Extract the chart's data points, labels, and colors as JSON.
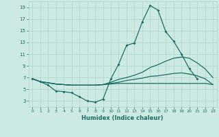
{
  "xlabel": "Humidex (Indice chaleur)",
  "ylabel": "",
  "background_color": "#cce9e4",
  "grid_color": "#aad4cc",
  "line_color": "#1a6e62",
  "xlim": [
    -0.5,
    23.5
  ],
  "ylim": [
    2.0,
    20.0
  ],
  "yticks": [
    3,
    5,
    7,
    9,
    11,
    13,
    15,
    17,
    19
  ],
  "xticks": [
    0,
    1,
    2,
    3,
    4,
    5,
    6,
    7,
    8,
    9,
    10,
    11,
    12,
    13,
    14,
    15,
    16,
    17,
    18,
    19,
    20,
    21,
    22,
    23
  ],
  "line1_x": [
    0,
    1,
    2,
    3,
    4,
    5,
    6,
    7,
    8,
    9,
    10,
    11,
    12,
    13,
    14,
    15,
    16,
    17,
    18,
    19,
    20,
    21
  ],
  "line1_y": [
    6.8,
    6.3,
    5.7,
    4.7,
    4.6,
    4.4,
    3.7,
    3.0,
    2.8,
    3.3,
    6.8,
    9.3,
    12.5,
    12.9,
    16.5,
    19.3,
    18.5,
    14.8,
    13.2,
    11.0,
    8.5,
    6.8
  ],
  "line2_x": [
    0,
    1,
    2,
    3,
    4,
    5,
    6,
    7,
    8,
    9,
    10,
    11,
    12,
    13,
    14,
    15,
    16,
    17,
    18,
    19,
    20,
    21,
    22,
    23
  ],
  "line2_y": [
    6.8,
    6.3,
    6.1,
    5.9,
    5.8,
    5.7,
    5.7,
    5.7,
    5.7,
    5.8,
    6.2,
    6.7,
    7.0,
    7.4,
    7.9,
    8.7,
    9.2,
    9.8,
    10.3,
    10.5,
    10.3,
    9.5,
    8.5,
    7.0
  ],
  "line3_x": [
    0,
    1,
    2,
    3,
    4,
    5,
    6,
    7,
    8,
    9,
    10,
    11,
    12,
    13,
    14,
    15,
    16,
    17,
    18,
    19,
    20,
    21,
    22,
    23
  ],
  "line3_y": [
    6.8,
    6.3,
    6.1,
    5.9,
    5.8,
    5.7,
    5.7,
    5.7,
    5.7,
    5.8,
    6.0,
    6.2,
    6.5,
    6.7,
    6.9,
    7.2,
    7.3,
    7.5,
    7.7,
    7.8,
    7.6,
    7.3,
    6.8,
    5.8
  ],
  "line4_x": [
    0,
    1,
    2,
    3,
    4,
    5,
    6,
    7,
    8,
    9,
    10,
    11,
    12,
    13,
    14,
    15,
    16,
    17,
    18,
    19,
    20,
    21,
    22,
    23
  ],
  "line4_y": [
    6.8,
    6.3,
    6.1,
    5.9,
    5.8,
    5.7,
    5.7,
    5.7,
    5.7,
    5.8,
    5.9,
    6.0,
    6.0,
    6.0,
    6.0,
    6.0,
    6.0,
    6.0,
    6.0,
    6.0,
    6.0,
    6.0,
    6.0,
    5.8
  ]
}
